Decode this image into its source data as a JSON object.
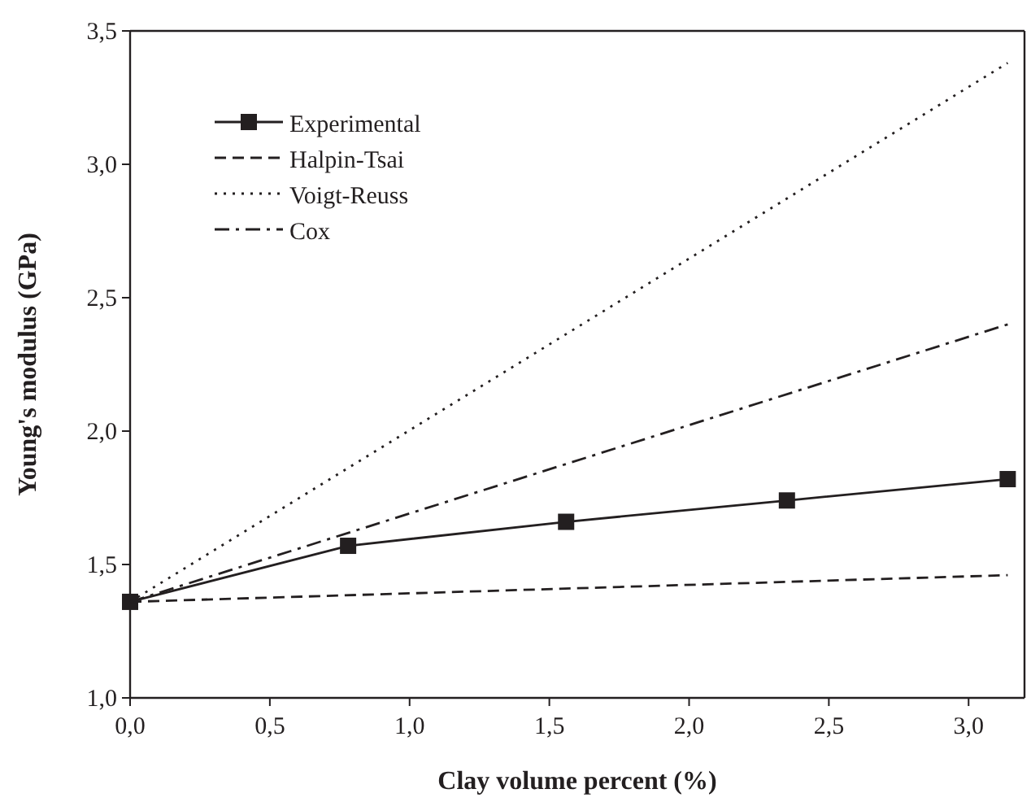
{
  "chart_data": {
    "type": "line",
    "xlabel": "Clay volume percent (%)",
    "ylabel": "Young's modulus (GPa)",
    "xlim": [
      0,
      3.2
    ],
    "ylim": [
      1,
      3.5
    ],
    "xticks": [
      {
        "value": 0,
        "label": "0,0"
      },
      {
        "value": 0.5,
        "label": "0,5"
      },
      {
        "value": 1,
        "label": "1,0"
      },
      {
        "value": 1.5,
        "label": "1,5"
      },
      {
        "value": 2,
        "label": "2,0"
      },
      {
        "value": 2.5,
        "label": "2,5"
      },
      {
        "value": 3,
        "label": "3,0"
      }
    ],
    "yticks": [
      {
        "value": 1,
        "label": "1,0"
      },
      {
        "value": 1.5,
        "label": "1,5"
      },
      {
        "value": 2,
        "label": "2,0"
      },
      {
        "value": 2.5,
        "label": "2,5"
      },
      {
        "value": 3,
        "label": "3,0"
      },
      {
        "value": 3.5,
        "label": "3,5"
      }
    ],
    "legend": "top left",
    "grid": false,
    "series": [
      {
        "name": "Experimental",
        "color": "#231f20",
        "x": [
          0,
          0.78,
          1.56,
          2.35,
          3.14
        ],
        "values": [
          1.36,
          1.57,
          1.66,
          1.74,
          1.82
        ],
        "marker": "square",
        "line_style": "solid"
      },
      {
        "name": "Halpin-Tsai",
        "color": "#231f20",
        "x": [
          0,
          3.14
        ],
        "values": [
          1.36,
          1.46
        ],
        "marker": "none",
        "line_style": "dashed"
      },
      {
        "name": "Voigt-Reuss",
        "color": "#231f20",
        "x": [
          0,
          3.14
        ],
        "values": [
          1.36,
          3.38
        ],
        "marker": "none",
        "line_style": "dotted"
      },
      {
        "name": "Cox",
        "color": "#231f20",
        "x": [
          0,
          3.14
        ],
        "values": [
          1.36,
          2.4
        ],
        "marker": "none",
        "line_style": "dashdot"
      }
    ]
  }
}
